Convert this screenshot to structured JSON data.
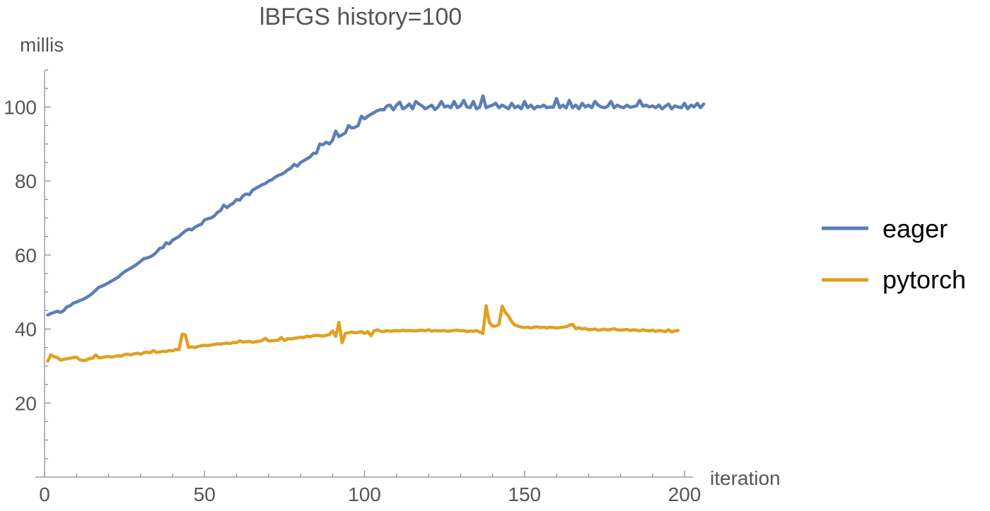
{
  "chart_data": {
    "type": "line",
    "title": "lBFGS history=100",
    "xlabel": "iteration",
    "ylabel": "millis",
    "xlim": [
      0,
      200
    ],
    "ylim": [
      0,
      110
    ],
    "x_ticks": [
      0,
      50,
      100,
      150,
      200
    ],
    "y_ticks": [
      20,
      40,
      60,
      80,
      100
    ],
    "grid": false,
    "legend_position": "right",
    "series": [
      {
        "name": "eager",
        "color": "#5b7fb4",
        "x_start": 1,
        "values": [
          43.8,
          44.2,
          44.5,
          44.8,
          44.5,
          45.0,
          46.0,
          46.3,
          47.0,
          47.3,
          47.7,
          48.0,
          48.5,
          49.0,
          49.7,
          50.5,
          51.3,
          51.6,
          52.0,
          52.5,
          53.0,
          53.5,
          54.0,
          54.8,
          55.5,
          56.0,
          56.5,
          57.0,
          57.6,
          58.3,
          59.0,
          59.2,
          59.5,
          60.0,
          60.8,
          61.8,
          62.0,
          63.3,
          63.0,
          64.0,
          64.5,
          65.0,
          65.8,
          66.5,
          67.0,
          66.8,
          67.5,
          68.0,
          68.3,
          69.5,
          69.8,
          70.0,
          70.5,
          71.5,
          72.0,
          73.5,
          72.8,
          73.5,
          74.0,
          75.0,
          74.8,
          76.0,
          76.5,
          76.3,
          77.5,
          78.0,
          78.5,
          79.0,
          79.3,
          80.0,
          80.3,
          81.0,
          81.5,
          81.8,
          82.3,
          83.0,
          83.5,
          84.5,
          84.0,
          85.0,
          85.5,
          86.0,
          86.5,
          87.5,
          87.5,
          90.0,
          89.8,
          90.5,
          90.0,
          91.0,
          93.5,
          92.0,
          92.5,
          93.0,
          95.0,
          94.3,
          94.5,
          95.0,
          97.5,
          96.8,
          97.5,
          98.0,
          98.5,
          99.0,
          99.3,
          99.2,
          100.3,
          100.5,
          99.2,
          100.5,
          101.3,
          99.5,
          100.0,
          100.8,
          99.5,
          101.5,
          100.8,
          100.3,
          99.5,
          100.0,
          100.5,
          99.3,
          100.0,
          101.5,
          100.0,
          100.3,
          99.8,
          101.5,
          99.8,
          100.3,
          101.8,
          100.0,
          99.8,
          101.5,
          99.5,
          100.0,
          103.0,
          99.8,
          100.2,
          100.5,
          101.0,
          99.8,
          100.5,
          100.0,
          99.5,
          101.0,
          99.8,
          100.3,
          99.5,
          101.5,
          99.8,
          100.5,
          99.5,
          100.2,
          100.0,
          100.5,
          99.8,
          100.0,
          99.9,
          102.3,
          99.8,
          100.5,
          99.7,
          101.8,
          99.8,
          100.5,
          99.5,
          101.0,
          100.0,
          100.5,
          99.8,
          101.5,
          100.5,
          100.0,
          99.8,
          100.2,
          101.5,
          99.8,
          100.5,
          100.0,
          99.8,
          100.5,
          99.9,
          100.1,
          100.3,
          101.8,
          100.2,
          100.5,
          100.0,
          100.3,
          99.8,
          100.5,
          99.5,
          100.2,
          100.8,
          99.5,
          100.3,
          100.0,
          99.8,
          101.0,
          99.5,
          100.5,
          100.0,
          101.0,
          99.8,
          100.8
        ]
      },
      {
        "name": "pytorch",
        "color": "#e0a020",
        "x_start": 1,
        "values": [
          31.3,
          33.0,
          32.5,
          32.3,
          31.6,
          31.8,
          32.0,
          32.1,
          32.3,
          32.4,
          31.7,
          31.5,
          31.6,
          32.0,
          32.1,
          33.0,
          32.2,
          32.3,
          32.5,
          32.6,
          32.4,
          32.6,
          32.8,
          32.7,
          33.1,
          33.2,
          33.0,
          33.3,
          33.5,
          33.2,
          33.6,
          33.8,
          33.6,
          34.2,
          33.7,
          33.8,
          34.0,
          33.9,
          34.2,
          34.1,
          34.5,
          34.4,
          38.6,
          38.4,
          35.0,
          35.2,
          35.0,
          35.3,
          35.5,
          35.6,
          35.5,
          35.7,
          35.8,
          36.0,
          35.9,
          36.1,
          36.2,
          36.1,
          36.4,
          36.3,
          36.8,
          36.5,
          36.6,
          36.7,
          36.4,
          36.6,
          36.7,
          36.9,
          37.5,
          36.8,
          36.8,
          36.9,
          37.0,
          37.7,
          36.9,
          37.4,
          37.3,
          37.5,
          37.6,
          37.8,
          37.7,
          38.1,
          37.9,
          38.2,
          38.3,
          38.2,
          38.1,
          38.3,
          38.5,
          39.5,
          38.0,
          41.8,
          36.3,
          38.8,
          39.0,
          39.2,
          39.0,
          39.1,
          39.3,
          38.8,
          39.3,
          38.2,
          39.5,
          39.8,
          39.4,
          39.3,
          39.6,
          39.4,
          39.5,
          39.6,
          39.5,
          39.7,
          39.5,
          39.6,
          39.5,
          39.5,
          39.6,
          39.7,
          39.5,
          39.8,
          39.4,
          39.6,
          39.5,
          39.5,
          39.6,
          39.4,
          39.5,
          39.6,
          39.7,
          39.5,
          39.6,
          39.3,
          39.5,
          39.4,
          39.6,
          39.2,
          38.8,
          46.3,
          41.8,
          40.8,
          40.8,
          41.2,
          46.2,
          44.5,
          43.5,
          42.0,
          41.0,
          40.8,
          40.5,
          40.4,
          40.5,
          40.3,
          40.5,
          40.6,
          40.4,
          40.5,
          40.3,
          40.5,
          40.4,
          40.3,
          40.4,
          40.5,
          40.6,
          41.0,
          41.3,
          40.1,
          40.4,
          40.0,
          40.2,
          39.8,
          39.9,
          40.0,
          39.7,
          39.8,
          40.0,
          39.7,
          39.9,
          40.1,
          39.8,
          39.7,
          39.8,
          39.9,
          39.6,
          39.8,
          39.7,
          39.5,
          39.8,
          39.6,
          39.5,
          39.7,
          39.4,
          39.6,
          39.5,
          39.3,
          39.8,
          39.2,
          39.5,
          39.6
        ]
      }
    ]
  }
}
